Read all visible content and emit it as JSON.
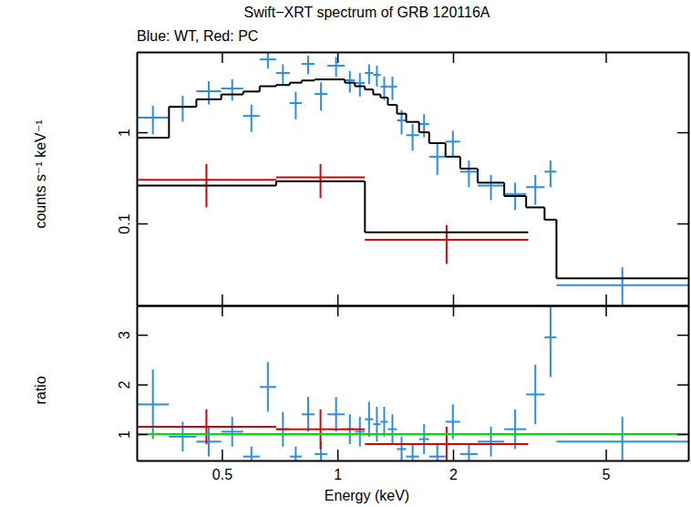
{
  "chart_data": [
    {
      "type": "scatter",
      "title": "Swift−XRT spectrum of GRB 120116A",
      "subtitle": "Blue: WT, Red: PC",
      "ylabel": "counts s⁻¹ keV⁻¹",
      "log": true,
      "tick_labels": "y",
      "xlim": [
        0.3,
        8.2
      ],
      "xticks": [
        0.5,
        1,
        2,
        5
      ],
      "ylim": [
        0.0126,
        7.6
      ],
      "yticks": [
        0.1,
        1
      ],
      "series": [
        {
          "type": "errorbar",
          "color": "#2b8ce6",
          "marker": "cross",
          "x_lo": [
            0.3,
            0.364,
            0.429,
            0.498,
            0.568,
            0.627,
            0.692,
            0.751,
            0.807,
            0.872,
            0.941,
            1.045,
            1.11,
            1.179,
            1.239,
            1.295,
            1.353,
            1.429,
            1.51,
            1.631,
            1.733,
            1.912,
            2.088,
            2.318,
            2.719,
            3.101,
            3.463,
            3.719
          ],
          "x_hi": [
            0.364,
            0.429,
            0.498,
            0.568,
            0.627,
            0.692,
            0.751,
            0.807,
            0.872,
            0.941,
            1.045,
            1.11,
            1.179,
            1.239,
            1.295,
            1.353,
            1.429,
            1.51,
            1.631,
            1.733,
            1.912,
            2.088,
            2.318,
            2.719,
            3.101,
            3.463,
            3.719,
            8.2
          ],
          "values": [
            1.45,
            1.91,
            2.82,
            3.02,
            1.51,
            6.3,
            4.47,
            2.09,
            5.62,
            2.63,
            5.37,
            3.72,
            3.47,
            4.47,
            4.27,
            3.16,
            3.16,
            1.35,
            0.93,
            1.23,
            0.54,
            0.79,
            0.37,
            0.26,
            0.21,
            0.25,
            0.37,
            0.021
          ],
          "errors": [
            0.5,
            0.6,
            0.8,
            0.8,
            0.5,
            1.3,
            1.1,
            0.7,
            1.3,
            0.9,
            1.3,
            1.0,
            1.0,
            1.1,
            1.1,
            0.9,
            0.9,
            0.4,
            0.3,
            0.35,
            0.2,
            0.25,
            0.12,
            0.08,
            0.07,
            0.09,
            0.12,
            0.012
          ]
        },
        {
          "type": "errorbar",
          "color": "#e00000",
          "marker": "cross",
          "x_lo": [
            0.3,
            0.692,
            1.179
          ],
          "x_hi": [
            0.692,
            1.179,
            3.14
          ],
          "values": [
            0.3,
            0.32,
            0.066
          ],
          "errors": [
            0.15,
            0.13,
            0.03
          ]
        },
        {
          "type": "step",
          "color": "#000000",
          "x_lo": [
            0.3,
            0.364,
            0.429,
            0.498,
            0.568,
            0.627,
            0.692,
            0.751,
            0.807,
            0.872,
            0.941,
            1.045,
            1.11,
            1.179,
            1.239,
            1.295,
            1.353,
            1.429,
            1.51,
            1.631,
            1.733,
            1.912,
            2.088,
            2.318,
            2.719,
            3.101,
            3.463,
            3.719
          ],
          "x_hi": [
            0.364,
            0.429,
            0.498,
            0.568,
            0.627,
            0.692,
            0.751,
            0.807,
            0.872,
            0.941,
            1.045,
            1.11,
            1.179,
            1.239,
            1.295,
            1.353,
            1.429,
            1.51,
            1.631,
            1.733,
            1.912,
            2.088,
            2.318,
            2.719,
            3.101,
            3.463,
            3.719,
            8.2
          ],
          "values": [
            0.87,
            1.9,
            2.3,
            2.6,
            2.8,
            3.2,
            3.3,
            3.5,
            3.7,
            3.8,
            3.8,
            3.5,
            3.2,
            2.95,
            2.6,
            2.4,
            2.0,
            1.6,
            1.3,
            1.0,
            0.76,
            0.54,
            0.4,
            0.28,
            0.2,
            0.15,
            0.11,
            0.025
          ]
        },
        {
          "type": "step",
          "color": "#000000",
          "x_lo": [
            0.3,
            0.692,
            1.179
          ],
          "x_hi": [
            0.692,
            1.179,
            3.14
          ],
          "values": [
            0.26,
            0.29,
            0.08
          ]
        }
      ]
    },
    {
      "type": "scatter",
      "xlabel": "Energy (keV)",
      "ylabel": "ratio",
      "log": "x",
      "xlim": [
        0.3,
        8.2
      ],
      "xticks": [
        0.5,
        1,
        2,
        5
      ],
      "ylim": [
        0.47,
        3.59
      ],
      "yticks": [
        1,
        2,
        3
      ],
      "series": [
        {
          "type": "errorbar",
          "color": "#2b8ce6",
          "marker": "cross",
          "x_lo": [
            0.3,
            0.364,
            0.429,
            0.498,
            0.568,
            0.627,
            0.692,
            0.751,
            0.807,
            0.872,
            0.941,
            1.045,
            1.11,
            1.179,
            1.239,
            1.295,
            1.353,
            1.429,
            1.51,
            1.631,
            1.733,
            1.912,
            2.088,
            2.318,
            2.719,
            3.101,
            3.463,
            3.719
          ],
          "x_hi": [
            0.364,
            0.429,
            0.498,
            0.568,
            0.627,
            0.692,
            0.751,
            0.807,
            0.872,
            0.941,
            1.045,
            1.11,
            1.179,
            1.239,
            1.295,
            1.353,
            1.429,
            1.51,
            1.631,
            1.733,
            1.912,
            2.088,
            2.318,
            2.719,
            3.101,
            3.463,
            3.719,
            8.2
          ],
          "values": [
            1.6,
            0.95,
            0.85,
            1.05,
            0.55,
            1.95,
            1.1,
            0.55,
            1.4,
            0.6,
            1.4,
            1.1,
            1.05,
            1.3,
            1.2,
            1.25,
            1.1,
            0.7,
            0.55,
            0.9,
            0.55,
            1.25,
            0.6,
            0.85,
            1.1,
            1.8,
            2.95,
            0.85
          ],
          "errors": [
            0.7,
            0.3,
            0.3,
            0.3,
            0.2,
            0.5,
            0.35,
            0.2,
            0.35,
            0.25,
            0.35,
            0.3,
            0.3,
            0.35,
            0.35,
            0.3,
            0.3,
            0.25,
            0.25,
            0.3,
            0.25,
            0.35,
            0.2,
            0.3,
            0.4,
            0.6,
            0.8,
            0.5
          ]
        },
        {
          "type": "errorbar",
          "color": "#e00000",
          "marker": "cross",
          "x_lo": [
            0.3,
            0.692,
            1.179
          ],
          "x_hi": [
            0.692,
            1.179,
            3.14
          ],
          "values": [
            1.15,
            1.1,
            0.8
          ],
          "errors": [
            0.35,
            0.4,
            0.35
          ]
        },
        {
          "type": "line",
          "color": "#00dd00",
          "x": [
            0.3,
            8.2
          ],
          "values": [
            1,
            1
          ]
        }
      ]
    }
  ]
}
